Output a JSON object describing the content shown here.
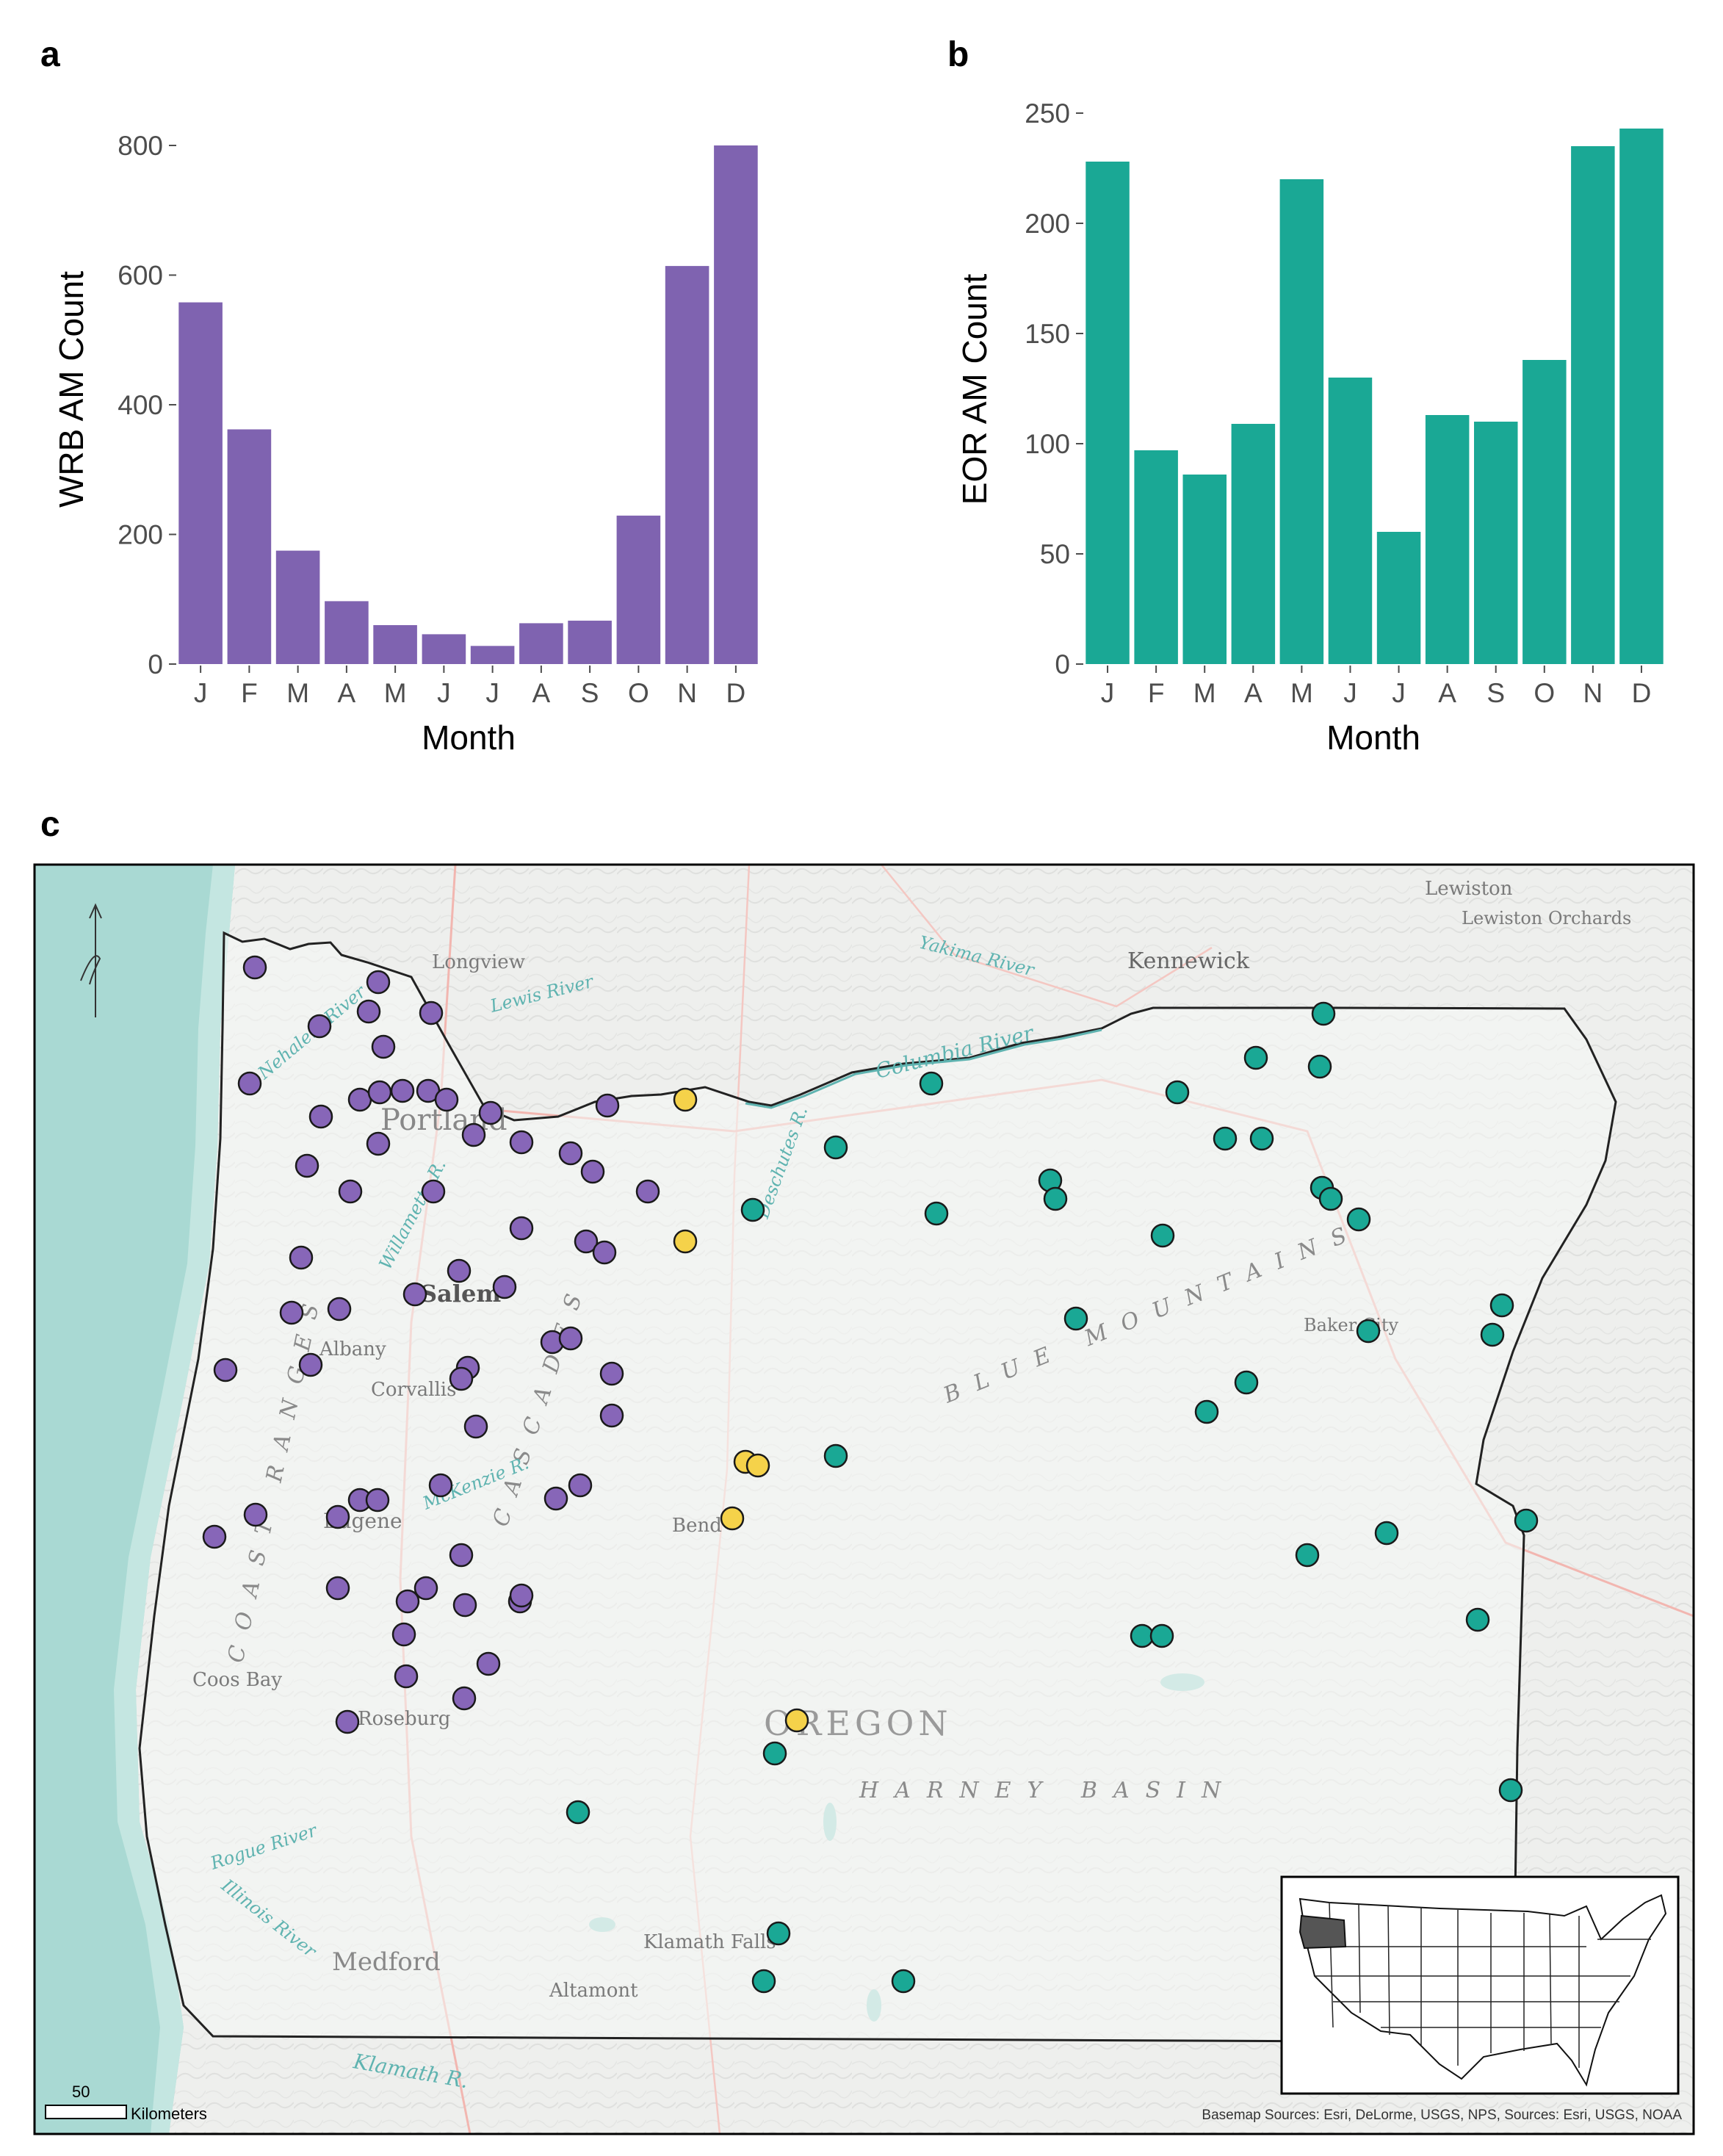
{
  "panels": {
    "a": "a",
    "b": "b",
    "c": "c"
  },
  "chart_data": [
    {
      "type": "bar",
      "panel": "a",
      "title": "",
      "xlabel": "Month",
      "ylabel": "WRB AM Count",
      "categories": [
        "J",
        "F",
        "M",
        "A",
        "M",
        "J",
        "J",
        "A",
        "S",
        "O",
        "N",
        "D"
      ],
      "values": [
        558,
        362,
        175,
        97,
        60,
        46,
        28,
        63,
        67,
        229,
        614,
        800
      ],
      "ylim": [
        0,
        800
      ],
      "yticks": [
        0,
        200,
        400,
        600,
        800
      ],
      "color": "#7f63b0"
    },
    {
      "type": "bar",
      "panel": "b",
      "title": "",
      "xlabel": "Month",
      "ylabel": "EOR AM Count",
      "categories": [
        "J",
        "F",
        "M",
        "A",
        "M",
        "J",
        "J",
        "A",
        "S",
        "O",
        "N",
        "D"
      ],
      "values": [
        228,
        97,
        86,
        109,
        220,
        130,
        60,
        113,
        110,
        138,
        235,
        243
      ],
      "ylim": [
        0,
        250
      ],
      "yticks": [
        0,
        50,
        100,
        150,
        200,
        250
      ],
      "color": "#1aa895"
    }
  ],
  "map": {
    "state_label": "OREGON",
    "regions": [
      "HARNEY BASIN",
      "BLUE MOUNTAINS",
      "CASCADES",
      "COAST RANGES"
    ],
    "cities": [
      "Longview",
      "Kennewick",
      "Lewiston",
      "Lewiston Orchards",
      "Portland",
      "Salem",
      "Albany",
      "Corvallis",
      "Eugene",
      "Bend",
      "Coos Bay",
      "Roseburg",
      "Medford",
      "Klamath Falls",
      "Altamont",
      "Baker City"
    ],
    "rivers": [
      "Yakima River",
      "Columbia River",
      "Lewis River",
      "Nehalem River",
      "Willamette R.",
      "Deschutes R.",
      "McKenzie R.",
      "Rogue River",
      "Illinois River",
      "Klamath R."
    ],
    "scale_value": "50",
    "scale_unit": "Kilometers",
    "credit": "Basemap Sources: Esri, DeLorme, USGS, NPS, Sources: Esri, USGS, NOAA",
    "colors": {
      "wrb": "#8766b8",
      "eor": "#1aa895",
      "other": "#f5d24a",
      "ocean": "#a9d9d3",
      "land": "#f1f2f0"
    }
  }
}
